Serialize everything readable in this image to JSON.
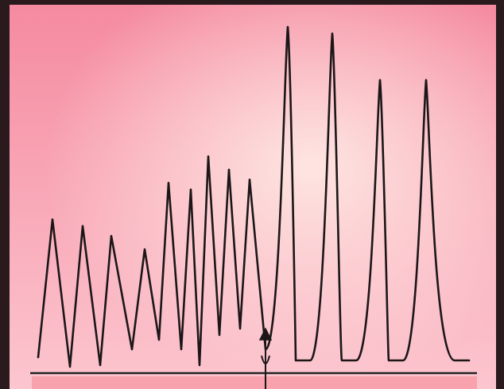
{
  "colors": {
    "background_top": "#f58aa0",
    "background_mid": "#fcc6cf",
    "glow": "#fff1ea",
    "frame": "#2a1a1e",
    "trace": "#1c1618",
    "baseline": "#222222",
    "band": "#f7a2ad"
  },
  "diagram": {
    "type": "line-trace",
    "description_kind": "staircase-then-spike-waveform",
    "peaks": [
      {
        "x": 66,
        "h": 0.42
      },
      {
        "x": 104,
        "h": 0.4
      },
      {
        "x": 140,
        "h": 0.37
      },
      {
        "x": 182,
        "h": 0.33
      },
      {
        "x": 212,
        "h": 0.53
      },
      {
        "x": 240,
        "h": 0.51
      },
      {
        "x": 262,
        "h": 0.61
      },
      {
        "x": 288,
        "h": 0.57
      },
      {
        "x": 314,
        "h": 0.54
      },
      {
        "x": 362,
        "h": 1.0
      },
      {
        "x": 418,
        "h": 0.98
      },
      {
        "x": 478,
        "h": 0.84
      },
      {
        "x": 536,
        "h": 0.84
      }
    ],
    "marker": {
      "x": 334,
      "symbol": "up-arrow"
    }
  }
}
